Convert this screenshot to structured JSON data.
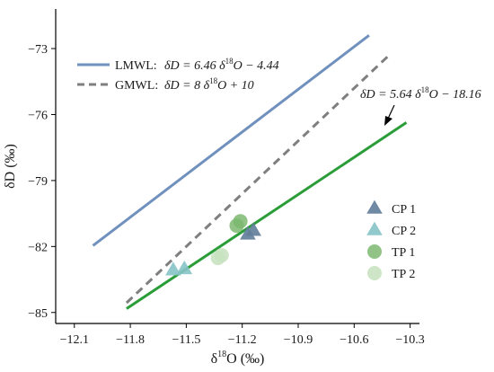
{
  "chart_data": {
    "type": "scatter",
    "xlabel_main": "δ",
    "xlabel_sup": "18",
    "xlabel_rest": "O (‰)",
    "ylabel": "δD (‰)",
    "xlim": [
      -12.2,
      -10.25
    ],
    "ylim": [
      -85.5,
      -71.2
    ],
    "x_ticks": [
      -12.1,
      -11.8,
      -11.5,
      -11.2,
      -10.9,
      -10.6,
      -10.3
    ],
    "y_ticks": [
      -73,
      -76,
      -79,
      -82,
      -85
    ],
    "grid": false,
    "lines": [
      {
        "name": "LMWL",
        "equation_prefix": "δD = 6.46 δ",
        "equation_sup": "18",
        "equation_suffix": "O − 4.44",
        "slope": 6.46,
        "intercept": -4.44,
        "x_range": [
          -12.0,
          -10.52
        ],
        "color": "#7090be",
        "dash": false
      },
      {
        "name": "GMWL",
        "equation_prefix": "δD = 8 δ",
        "equation_sup": "18",
        "equation_suffix": "O + 10",
        "slope": 8,
        "intercept": 10,
        "x_range": [
          -11.82,
          -10.42
        ],
        "color": "#7f7f7f",
        "dash": true
      },
      {
        "name": "",
        "equation_prefix": "δD = 5.64 δ",
        "equation_sup": "18",
        "equation_suffix": "O − 18.16",
        "slope": 5.64,
        "intercept": -18.16,
        "x_range": [
          -11.82,
          -10.32
        ],
        "color": "#2a9d38",
        "dash": false
      }
    ],
    "series": [
      {
        "name": "CP 1",
        "marker": "triangle",
        "color": "#627d99",
        "points": [
          {
            "x": -11.17,
            "y": -81.45
          },
          {
            "x": -11.14,
            "y": -81.28
          }
        ]
      },
      {
        "name": "CP 2",
        "marker": "triangle",
        "color": "#86c3c6",
        "points": [
          {
            "x": -11.57,
            "y": -83.08
          },
          {
            "x": -11.51,
            "y": -83.02
          }
        ]
      },
      {
        "name": "TP 1",
        "marker": "circle",
        "color": "#7cb870",
        "points": [
          {
            "x": -11.21,
            "y": -80.85
          },
          {
            "x": -11.23,
            "y": -81.05
          }
        ]
      },
      {
        "name": "TP 2",
        "marker": "circle",
        "color": "#c6e2bd",
        "points": [
          {
            "x": -11.33,
            "y": -82.52
          },
          {
            "x": -11.31,
            "y": -82.4
          }
        ]
      }
    ],
    "legend_lines_position": "top-left",
    "legend_points_position": "right"
  }
}
